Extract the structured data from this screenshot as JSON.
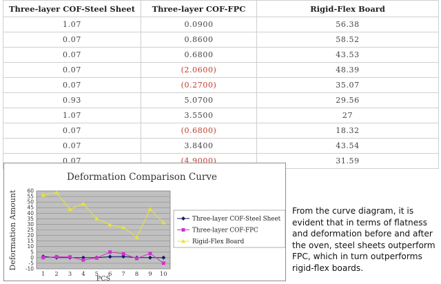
{
  "table": {
    "headers": [
      "Three-layer COF-Steel Sheet",
      "Three-layer COF-FPC",
      "Rigid-Flex Board"
    ],
    "rows": [
      [
        "1.07",
        "0.0900",
        "56.38"
      ],
      [
        "0.07",
        "0.8600",
        "58.52"
      ],
      [
        "0.07",
        "0.6800",
        "43.53"
      ],
      [
        "0.07",
        "(2.0600)",
        "48.39"
      ],
      [
        "0.07",
        "(0.2700)",
        "35.07"
      ],
      [
        "0.93",
        "5.0700",
        "29.56"
      ],
      [
        "1.07",
        "3.5500",
        "27"
      ],
      [
        "0.07",
        "(0.6800)",
        "18.32"
      ],
      [
        "0.07",
        "3.8400",
        "43.54"
      ],
      [
        "0.07",
        "(4.9000)",
        "31.59"
      ]
    ],
    "negative_color": "#c0392b"
  },
  "chart_data": {
    "type": "line",
    "title": "Deformation Comparison Curve",
    "xlabel": "PCS",
    "ylabel": "Deformation Amount",
    "x": [
      1,
      2,
      3,
      4,
      5,
      6,
      7,
      8,
      9,
      10
    ],
    "ylim": [
      -10,
      60
    ],
    "yticks": [
      -10,
      -5,
      0,
      5,
      10,
      15,
      20,
      25,
      30,
      35,
      40,
      45,
      50,
      55,
      60
    ],
    "grid": true,
    "legend_position": "right",
    "series": [
      {
        "name": "Three-layer COF-Steel Sheet",
        "color": "#1a1a6e",
        "marker": "diamond",
        "values": [
          1.07,
          0.07,
          0.07,
          0.07,
          0.07,
          0.93,
          1.07,
          0.07,
          0.07,
          0.07
        ]
      },
      {
        "name": "Three-layer COF-FPC",
        "color": "#cc33cc",
        "marker": "square",
        "values": [
          0.09,
          0.86,
          0.68,
          -2.06,
          -0.27,
          5.07,
          3.55,
          -0.68,
          3.84,
          -4.9
        ]
      },
      {
        "name": "Rigid-Flex Board",
        "color": "#e6e633",
        "marker": "triangle",
        "values": [
          56.38,
          58.52,
          43.53,
          48.39,
          35.07,
          29.56,
          27,
          18.32,
          43.54,
          31.59
        ]
      }
    ]
  },
  "summary": "From the curve diagram, it is evident that in terms of flatness and deformation before and after the oven, steel sheets outperform FPC, which in turn outperforms rigid-flex boards."
}
